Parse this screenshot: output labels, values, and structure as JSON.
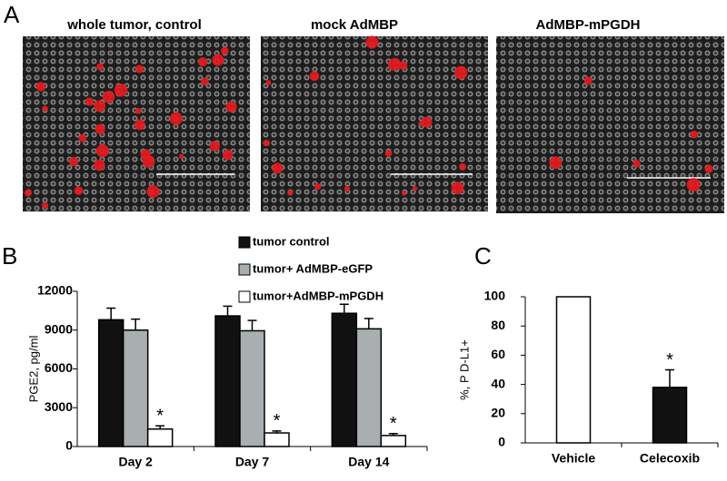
{
  "panel_a": {
    "label": "A",
    "images": [
      {
        "title": "whole tumor, control"
      },
      {
        "title": "mock AdMBP"
      },
      {
        "title": "AdMBP-mPGDH"
      }
    ]
  },
  "chart_data": [
    {
      "type": "bar",
      "panel_label": "B",
      "y_label": "PGE2, pg/ml",
      "categories": [
        "Day 2",
        "Day 7",
        "Day 14"
      ],
      "series": [
        {
          "name": "tumor control",
          "color": "#111111",
          "values": [
            9800,
            10100,
            10300
          ],
          "errors": [
            900,
            750,
            700
          ],
          "annotations": [
            null,
            null,
            null
          ]
        },
        {
          "name": "tumor+ AdMBP-eGFP",
          "color": "#a9aeb0",
          "values": [
            9000,
            8950,
            9100
          ],
          "errors": [
            850,
            800,
            800
          ],
          "annotations": [
            null,
            null,
            null
          ]
        },
        {
          "name": "tumor+AdMBP-mPGDH",
          "color": "#ffffff",
          "values": [
            1350,
            1050,
            850
          ],
          "errors": [
            250,
            150,
            150
          ],
          "annotations": [
            "*",
            "*",
            "*"
          ]
        }
      ],
      "ylim": [
        0,
        12000
      ],
      "yticks": [
        0,
        3000,
        6000,
        9000,
        12000
      ],
      "legend": "top"
    },
    {
      "type": "bar",
      "panel_label": "C",
      "y_label": "%, P D-L1+",
      "categories": [
        "Vehicle",
        "Celecoxib"
      ],
      "series": [
        {
          "colors": [
            "#ffffff",
            "#111111"
          ],
          "values": [
            100,
            38
          ],
          "errors": [
            null,
            12
          ],
          "annotations": [
            null,
            "*"
          ]
        }
      ],
      "ylim": [
        0,
        100
      ],
      "yticks": [
        0,
        20,
        40,
        60,
        80,
        100
      ]
    }
  ]
}
